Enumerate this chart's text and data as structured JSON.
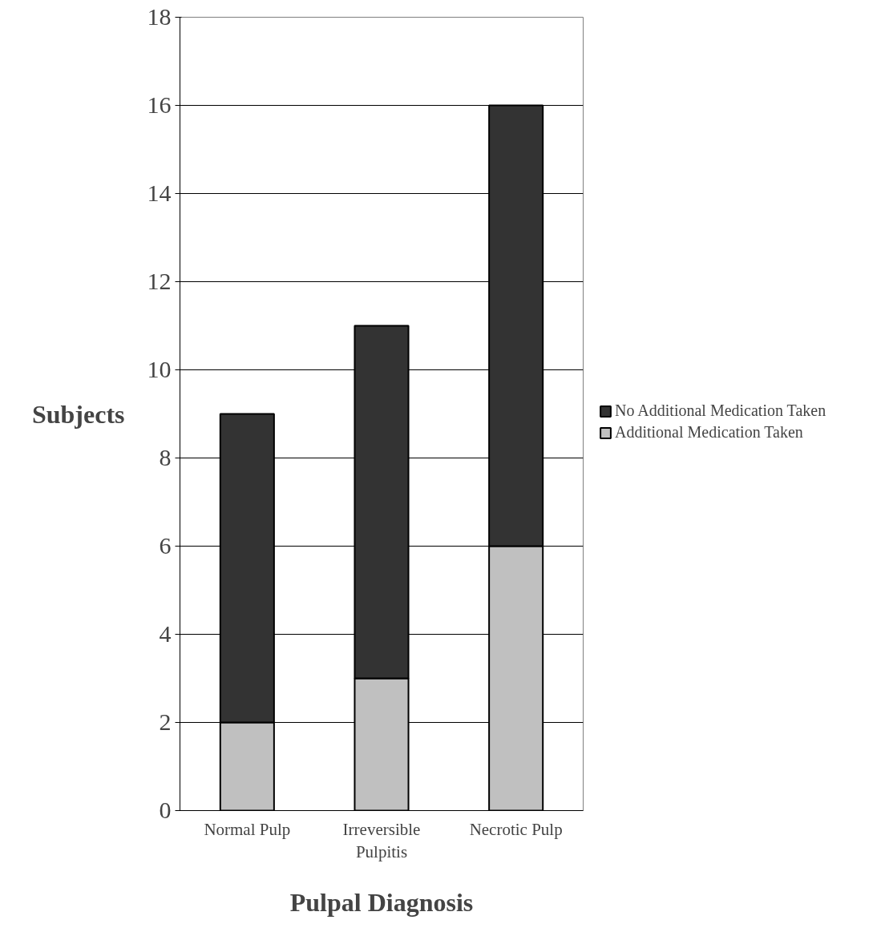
{
  "chart_data": {
    "type": "bar",
    "stacked": true,
    "xlabel": "Pulpal Diagnosis",
    "ylabel": "Subjects",
    "categories": [
      "Normal Pulp",
      "Irreversible Pulpitis",
      "Necrotic Pulp"
    ],
    "series": [
      {
        "name": "Additional Medication Taken",
        "color": "#c0c0c0",
        "values": [
          2,
          3,
          6
        ]
      },
      {
        "name": "No Additional Medication Taken",
        "color": "#333333",
        "values": [
          7,
          8,
          10
        ]
      }
    ],
    "ylim": [
      0,
      18
    ],
    "yticks": [
      0,
      2,
      4,
      6,
      8,
      10,
      12,
      14,
      16,
      18
    ],
    "grid": "y",
    "legend": "right"
  }
}
